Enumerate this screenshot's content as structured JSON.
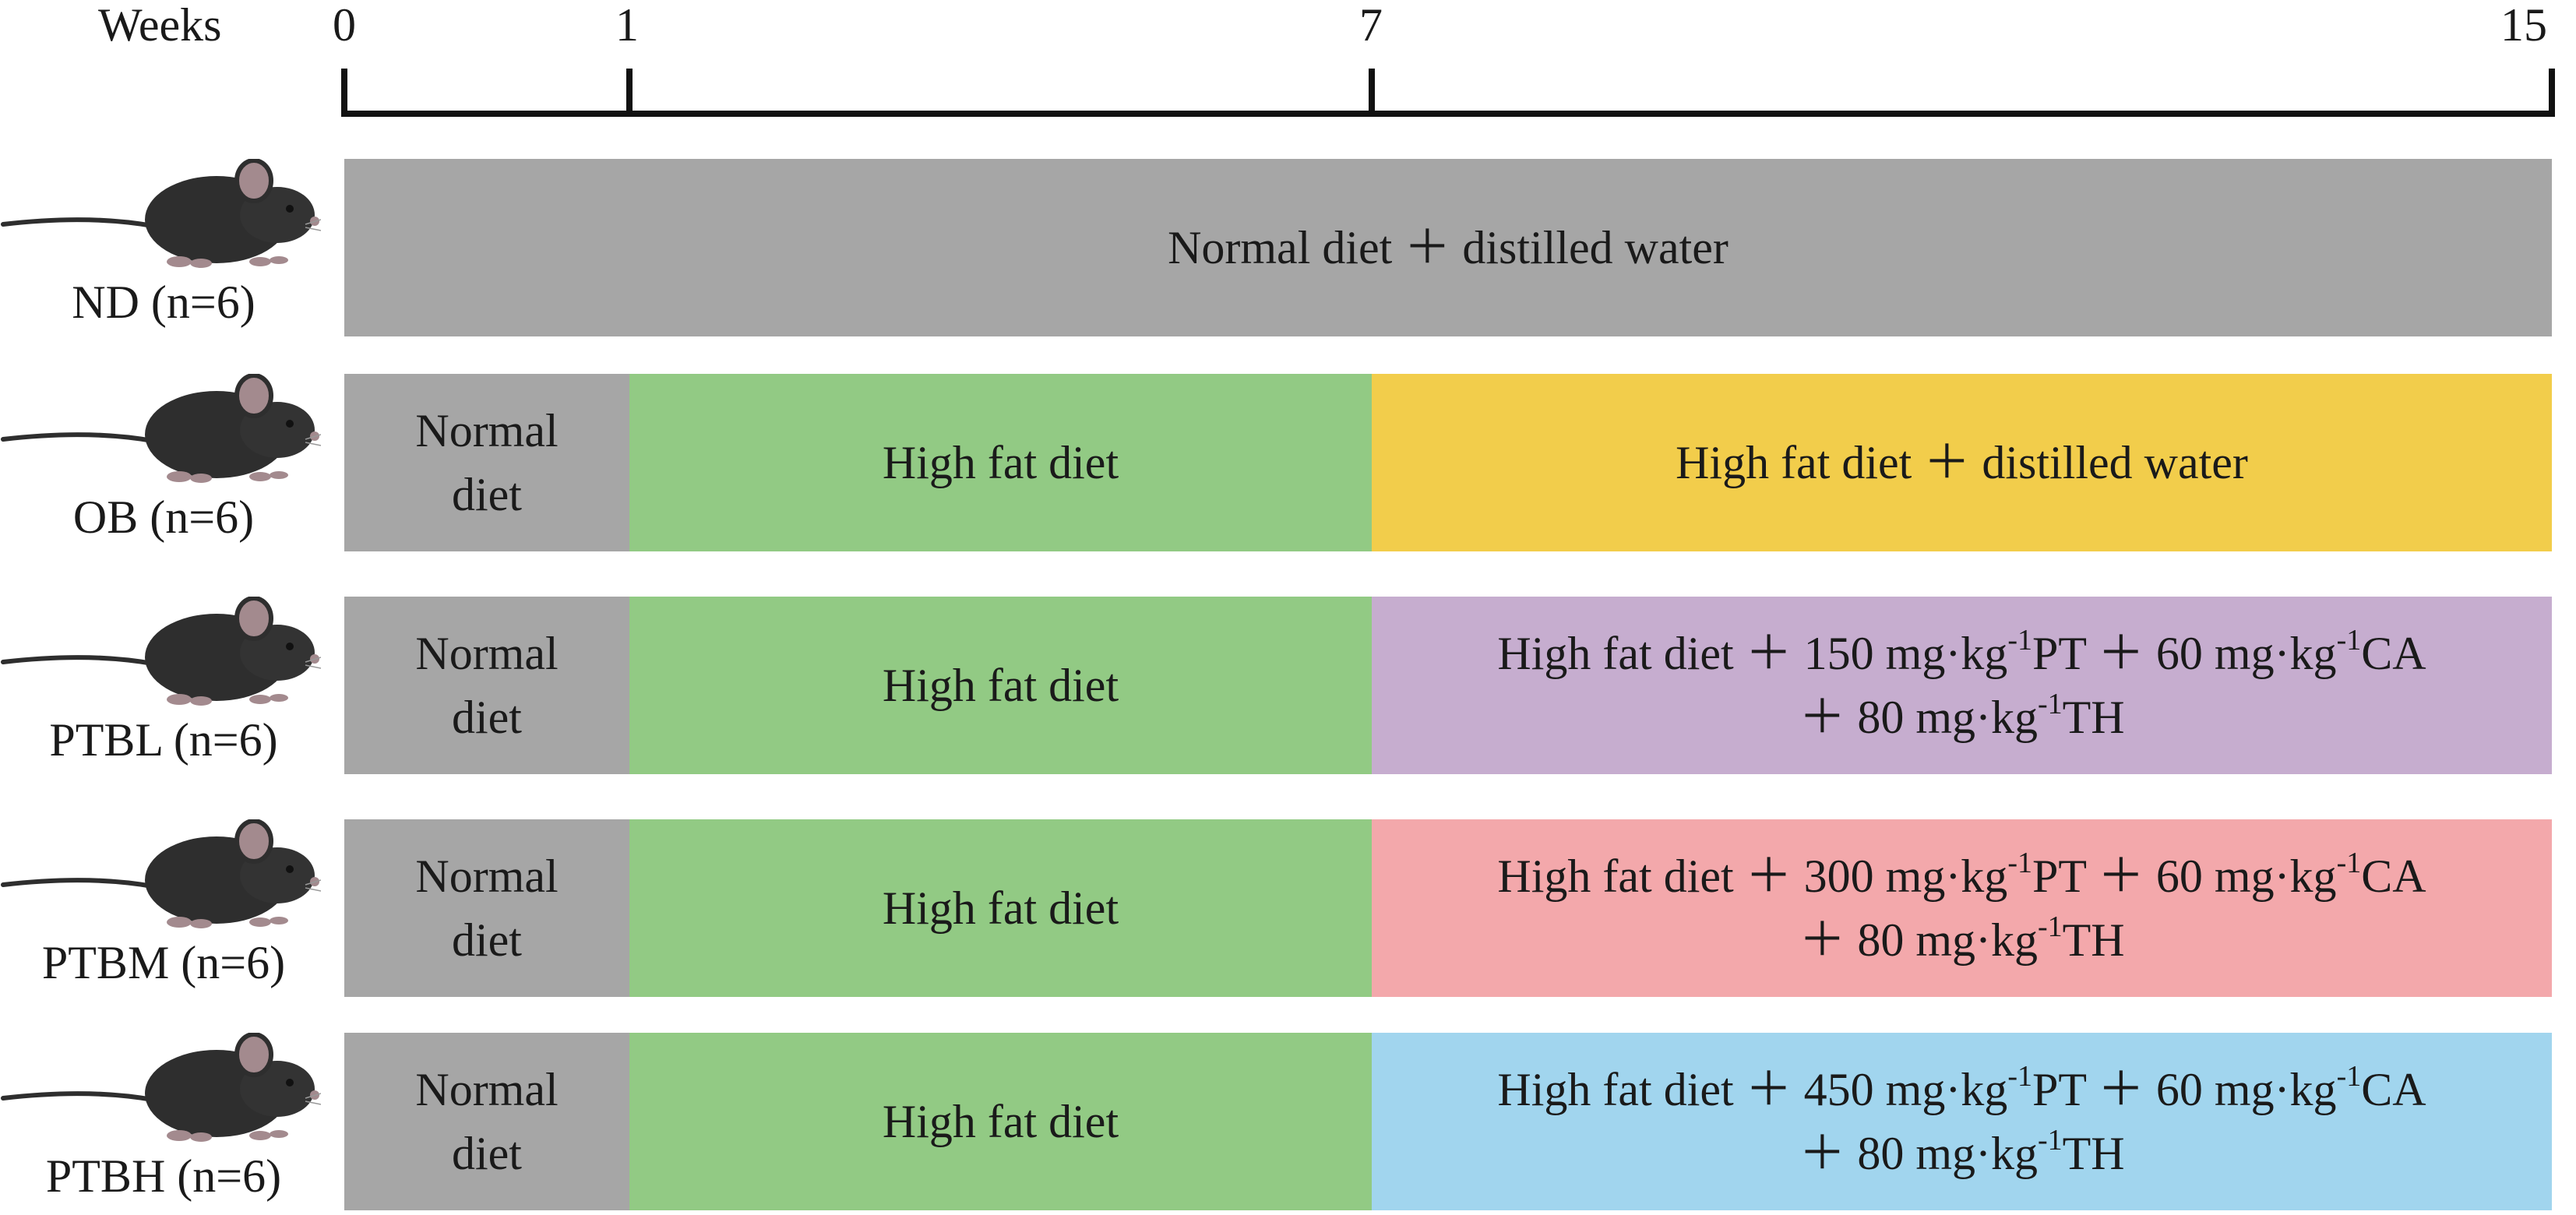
{
  "timeline": {
    "axis_label": "Weeks",
    "ticks": [
      "0",
      "1",
      "7",
      "15"
    ]
  },
  "colors": {
    "normal": "#a6a6a6",
    "high_fat": "#92ca84",
    "ob_treatment": "#f2cd4b",
    "ptbl_treatment": "#c6adcf",
    "ptbm_treatment": "#f3a8ab",
    "ptbh_treatment": "#a1d5ee",
    "mouse_body": "#2e2e2e",
    "mouse_ear": "#a38a8e"
  },
  "rows": [
    {
      "group": "ND (n=6)",
      "full": "Normal diet ＋ distilled water"
    },
    {
      "group": "OB (n=6)",
      "normal": "Normal\ndiet",
      "high_fat": "High fat diet",
      "treatment": "High fat diet ＋ distilled water"
    },
    {
      "group": "PTBL (n=6)",
      "normal": "Normal\ndiet",
      "high_fat": "High fat diet",
      "treat_l1_a": "High fat diet ＋ 150 mg·kg",
      "treat_sup1": "-1",
      "treat_l1_b": "PT ＋ 60 mg·kg",
      "treat_sup2": "-1",
      "treat_l1_c": "CA",
      "treat_l2_a": "＋ 80 mg·kg",
      "treat_sup3": "-1",
      "treat_l2_b": "TH"
    },
    {
      "group": "PTBM (n=6)",
      "normal": "Normal\ndiet",
      "high_fat": "High fat diet",
      "treat_l1_a": "High fat diet ＋ 300 mg·kg",
      "treat_sup1": "-1",
      "treat_l1_b": "PT ＋ 60 mg·kg",
      "treat_sup2": "-1",
      "treat_l1_c": "CA",
      "treat_l2_a": "＋ 80 mg·kg",
      "treat_sup3": "-1",
      "treat_l2_b": "TH"
    },
    {
      "group": "PTBH (n=6)",
      "normal": "Normal\ndiet",
      "high_fat": "High fat diet",
      "treat_l1_a": "High fat diet ＋ 450 mg·kg",
      "treat_sup1": "-1",
      "treat_l1_b": "PT ＋ 60 mg·kg",
      "treat_sup2": "-1",
      "treat_l1_c": "CA",
      "treat_l2_a": "＋ 80 mg·kg",
      "treat_sup3": "-1",
      "treat_l2_b": "TH"
    }
  ]
}
